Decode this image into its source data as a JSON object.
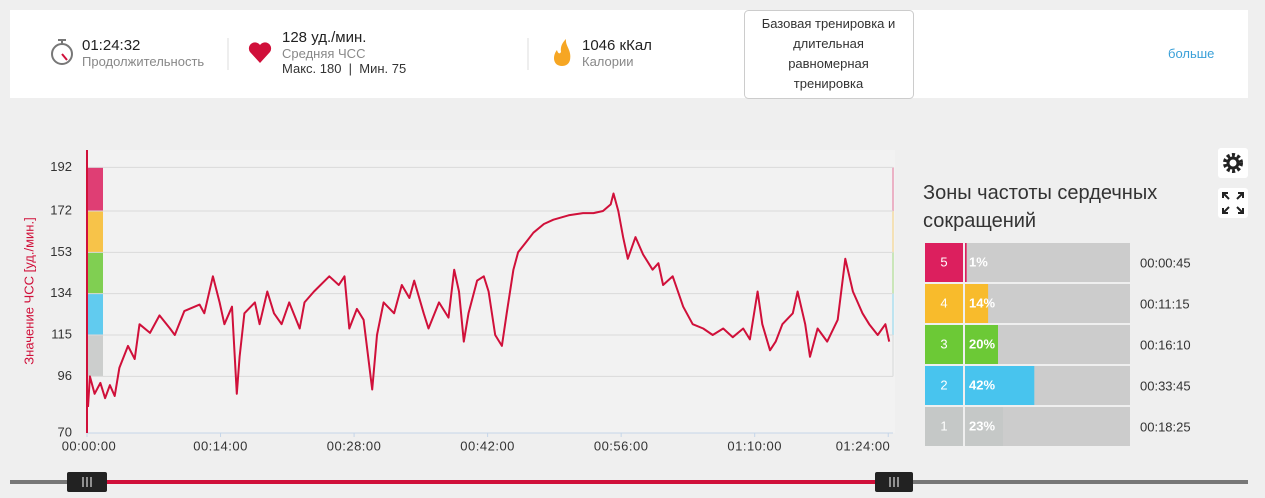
{
  "header": {
    "duration": {
      "value": "01:24:32",
      "label": "Продолжительность"
    },
    "heart_rate": {
      "value": "128 уд./мин.",
      "label": "Средняя ЧСС",
      "range": "Макс. 180  |  Мин. 75"
    },
    "calories": {
      "value": "1046 кКал",
      "label": "Калории"
    },
    "training_type": "Базовая тренировка и длительная равномерная тренировка",
    "more_link": "больше"
  },
  "chart_data": {
    "type": "line",
    "y_label": "Значение ЧСС [уд./мин.]",
    "color": "#d0103a",
    "x": [
      0.1,
      0.3,
      0.8,
      1.4,
      1.9,
      2.4,
      2.9,
      3.4,
      4.3,
      5.0,
      5.5,
      6.6,
      7.6,
      8.7,
      9.2,
      10.2,
      11.8,
      12.3,
      13.2,
      13.9,
      14.4,
      15.2,
      15.7,
      16.0,
      16.5,
      17.6,
      18.1,
      18.9,
      19.6,
      20.4,
      21.2,
      22.3,
      22.8,
      23.8,
      25.4,
      26.4,
      27.0,
      27.5,
      28.3,
      29.0,
      29.9,
      30.4,
      31.1,
      32.2,
      33.0,
      33.8,
      34.3,
      35.3,
      35.8,
      36.9,
      37.9,
      38.5,
      39.0,
      39.5,
      40.0,
      40.9,
      41.6,
      42.1,
      42.8,
      43.5,
      44.0,
      44.7,
      45.2,
      46.1,
      46.8,
      47.9,
      48.9,
      50.5,
      52.0,
      53.1,
      54.1,
      54.9,
      55.2,
      55.7,
      56.2,
      56.7,
      57.5,
      58.3,
      59.3,
      59.9,
      60.4,
      61.4,
      62.5,
      63.5,
      64.6,
      65.6,
      66.7,
      67.7,
      68.8,
      69.5,
      70.3,
      70.8,
      71.6,
      72.2,
      72.9,
      74.0,
      74.5,
      75.3,
      75.8,
      76.6,
      77.6,
      78.7,
      79.5,
      80.3,
      80.8,
      81.3,
      82.0,
      82.9,
      83.7,
      84.1
    ],
    "values": [
      82,
      96,
      88,
      93,
      86,
      92,
      87,
      100,
      110,
      104,
      120,
      116,
      124,
      118,
      115,
      126,
      129,
      125,
      142,
      130,
      120,
      128,
      88,
      105,
      125,
      130,
      120,
      135,
      125,
      120,
      130,
      118,
      130,
      135,
      142,
      138,
      142,
      118,
      127,
      122,
      90,
      115,
      130,
      125,
      138,
      132,
      140,
      125,
      118,
      130,
      123,
      145,
      135,
      112,
      125,
      140,
      142,
      135,
      115,
      110,
      125,
      145,
      153,
      158,
      162,
      166,
      168,
      170,
      171,
      171,
      172,
      175,
      180,
      172,
      160,
      150,
      160,
      152,
      145,
      148,
      138,
      142,
      128,
      120,
      118,
      115,
      118,
      114,
      118,
      113,
      135,
      120,
      108,
      112,
      120,
      125,
      135,
      120,
      105,
      118,
      112,
      122,
      150,
      135,
      130,
      125,
      120,
      115,
      120,
      112
    ],
    "xlim": [
      0,
      84.5
    ],
    "xticks": [
      {
        "value": 0,
        "label": "00:00:00"
      },
      {
        "value": 14,
        "label": "00:14:00"
      },
      {
        "value": 28,
        "label": "00:28:00"
      },
      {
        "value": 42,
        "label": "00:42:00"
      },
      {
        "value": 56,
        "label": "00:56:00"
      },
      {
        "value": 70,
        "label": "01:10:00"
      },
      {
        "value": 84,
        "label": "01:24:00"
      }
    ],
    "ylim": [
      70,
      200
    ],
    "yticks": [
      70,
      96,
      115,
      134,
      153,
      172,
      192
    ],
    "grid": true
  },
  "zones": {
    "title": "Зоны частоты сердечных сокращений",
    "rows": [
      {
        "zone": 5,
        "percent": 1,
        "percent_label": "1%",
        "time": "00:00:45",
        "color": "#dc1f5e"
      },
      {
        "zone": 4,
        "percent": 14,
        "percent_label": "14%",
        "time": "00:11:15",
        "color": "#f8bb2c"
      },
      {
        "zone": 3,
        "percent": 20,
        "percent_label": "20%",
        "time": "00:16:10",
        "color": "#6cc936"
      },
      {
        "zone": 2,
        "percent": 42,
        "percent_label": "42%",
        "time": "00:33:45",
        "color": "#48c4ee"
      },
      {
        "zone": 1,
        "percent": 23,
        "percent_label": "23%",
        "time": "00:18:25",
        "color": "#c5c8c7"
      }
    ]
  }
}
